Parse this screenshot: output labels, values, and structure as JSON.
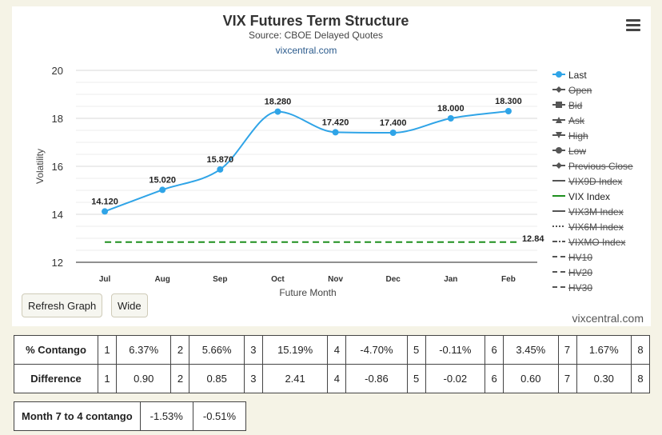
{
  "chart_data": {
    "type": "line",
    "title": "VIX Futures Term Structure",
    "subtitle": "Source: CBOE Delayed Quotes",
    "credit": "vixcentral.com",
    "xlabel": "Future Month",
    "ylabel": "Volatility",
    "categories": [
      "Jul",
      "Aug",
      "Sep",
      "Oct",
      "Nov",
      "Dec",
      "Jan",
      "Feb"
    ],
    "ylim": [
      12,
      20
    ],
    "yticks": [
      12,
      14,
      16,
      18,
      20
    ],
    "grid": true,
    "legend_position": "right",
    "series": [
      {
        "name": "Last",
        "values": [
          14.12,
          15.02,
          15.87,
          18.28,
          17.42,
          17.4,
          18.0,
          18.3
        ],
        "labels": [
          "14.120",
          "15.020",
          "15.870",
          "18.280",
          "17.420",
          "17.400",
          "18.000",
          "18.300"
        ],
        "color": "#2fa4e7",
        "style": "spline"
      },
      {
        "name": "VIX Index",
        "values": [
          12.84,
          12.84,
          12.84,
          12.84,
          12.84,
          12.84,
          12.84,
          12.84
        ],
        "end_label": "12.84",
        "color": "#1e8f1e",
        "style": "dashed"
      }
    ],
    "legend": [
      {
        "name": "Last",
        "symbol": "circle",
        "active": true,
        "color": "#2fa4e7"
      },
      {
        "name": "Open",
        "symbol": "diamond",
        "active": false,
        "color": "#555555"
      },
      {
        "name": "Bid",
        "symbol": "square",
        "active": false,
        "color": "#555555"
      },
      {
        "name": "Ask",
        "symbol": "triangle",
        "active": false,
        "color": "#555555"
      },
      {
        "name": "High",
        "symbol": "triangle-down",
        "active": false,
        "color": "#555555"
      },
      {
        "name": "Low",
        "symbol": "circle",
        "active": false,
        "color": "#555555"
      },
      {
        "name": "Previous Close",
        "symbol": "diamond",
        "active": false,
        "color": "#555555"
      },
      {
        "name": "VIX9D Index",
        "symbol": "line",
        "active": false,
        "color": "#555555"
      },
      {
        "name": "VIX Index",
        "symbol": "line",
        "active": true,
        "color": "#1e8f1e"
      },
      {
        "name": "VIX3M Index",
        "symbol": "line",
        "active": false,
        "color": "#555555"
      },
      {
        "name": "VIX6M Index",
        "symbol": "dotted",
        "active": false,
        "color": "#555555"
      },
      {
        "name": "VIXMO Index",
        "symbol": "dashdot",
        "active": false,
        "color": "#555555"
      },
      {
        "name": "HV10",
        "symbol": "dashed",
        "active": false,
        "color": "#555555"
      },
      {
        "name": "HV20",
        "symbol": "dashed",
        "active": false,
        "color": "#555555"
      },
      {
        "name": "HV30",
        "symbol": "dashed",
        "active": false,
        "color": "#555555"
      }
    ]
  },
  "controls": {
    "refresh_label": "Refresh Graph",
    "wide_label": "Wide",
    "menu_icon": "hamburger-menu-icon"
  },
  "contango": {
    "rows": [
      {
        "label": "% Contango",
        "cells": [
          [
            "1",
            "6.37%"
          ],
          [
            "2",
            "5.66%"
          ],
          [
            "3",
            "15.19%"
          ],
          [
            "4",
            "-4.70%"
          ],
          [
            "5",
            "-0.11%"
          ],
          [
            "6",
            "3.45%"
          ],
          [
            "7",
            "1.67%"
          ]
        ],
        "last": "8"
      },
      {
        "label": "Difference",
        "cells": [
          [
            "1",
            "0.90"
          ],
          [
            "2",
            "0.85"
          ],
          [
            "3",
            "2.41"
          ],
          [
            "4",
            "-0.86"
          ],
          [
            "5",
            "-0.02"
          ],
          [
            "6",
            "0.60"
          ],
          [
            "7",
            "0.30"
          ]
        ],
        "last": "8"
      }
    ]
  },
  "month_contango": {
    "label": "Month 7 to 4 contango",
    "values": [
      "-1.53%",
      "-0.51%"
    ]
  }
}
